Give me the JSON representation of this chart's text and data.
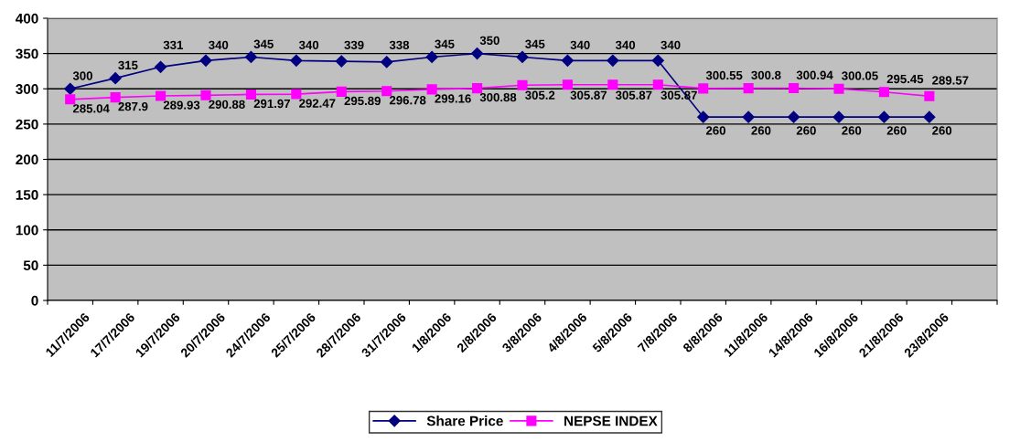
{
  "chart_data": {
    "type": "line",
    "categories": [
      "11/7/2006",
      "17/7/2006",
      "19/7/2006",
      "20/7/2006",
      "24/7/2006",
      "25/7/2006",
      "28/7/2006",
      "31/7/2006",
      "1/8/2006",
      "2/8/2006",
      "3/8/2006",
      "4/8/2006",
      "5/8/2006",
      "7/8/2006",
      "8/8/2006",
      "11/8/2006",
      "14/8/2006",
      "16/8/2006",
      "21/8/2006",
      "23/8/2006",
      null
    ],
    "series": [
      {
        "name": "Share Price",
        "color": "#000080",
        "marker": "diamond",
        "values": [
          300,
          315,
          331,
          340,
          345,
          340,
          339,
          338,
          345,
          350,
          345,
          340,
          340,
          340,
          260,
          260,
          260,
          260,
          260,
          260,
          null
        ]
      },
      {
        "name": "NEPSE INDEX",
        "color": "#ff00ff",
        "marker": "square",
        "values": [
          285.04,
          287.9,
          289.93,
          290.88,
          291.97,
          292.47,
          295.89,
          296.78,
          299.16,
          300.88,
          305.2,
          305.87,
          305.87,
          305.87,
          300.55,
          300.8,
          300.94,
          300.05,
          295.45,
          289.57,
          null
        ]
      }
    ],
    "ylim": [
      0,
      400
    ],
    "yticks": [
      0,
      50,
      100,
      150,
      200,
      250,
      300,
      350,
      400
    ],
    "grid": "y",
    "legend": "bottom",
    "data_labels": true,
    "line_style": "solid"
  }
}
